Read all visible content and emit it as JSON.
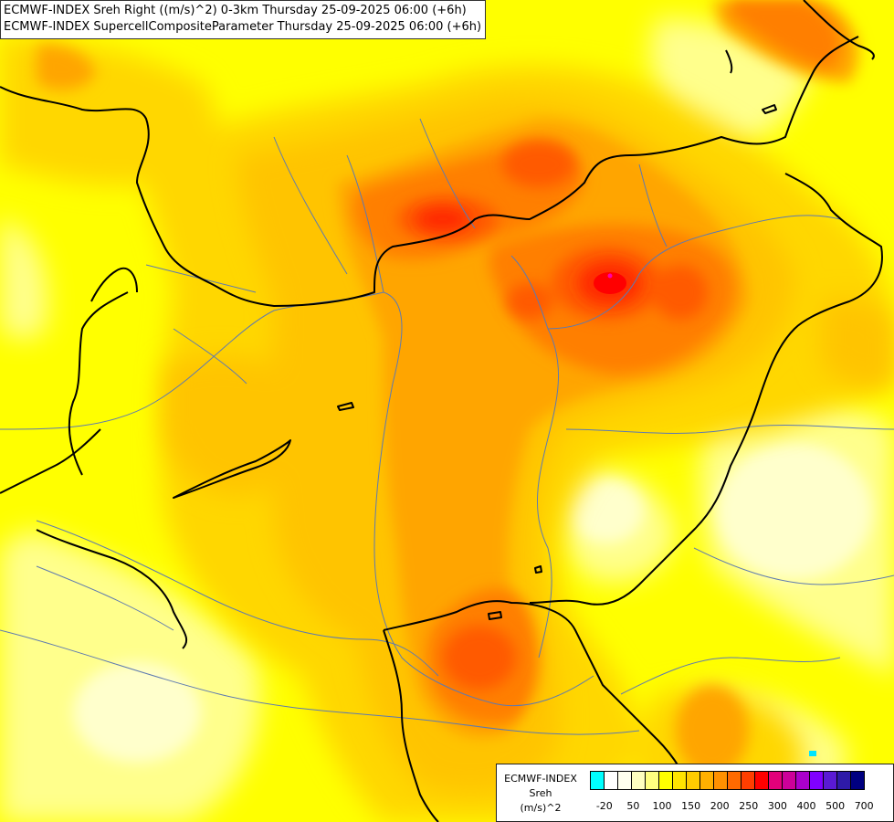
{
  "titles": {
    "line1": "ECMWF-INDEX Sreh Right ((m/s)^2) 0-3km Thursday 25-09-2025 06:00 (+6h)",
    "line2": "ECMWF-INDEX SupercellCompositeParameter Thursday 25-09-2025 06:00 (+6h)"
  },
  "legend": {
    "source": "ECMWF-INDEX",
    "parameter": "Sreh",
    "unit": "(m/s)^2",
    "colors": [
      "#00ffff",
      "#ffffff",
      "#ffffee",
      "#ffffc0",
      "#ffff80",
      "#ffff00",
      "#ffe400",
      "#ffcc00",
      "#ffb000",
      "#ff9000",
      "#ff6a00",
      "#ff3e00",
      "#ff0000",
      "#e2007a",
      "#cc0099",
      "#aa00cc",
      "#8000ff",
      "#5a1ad4",
      "#2e1aa8",
      "#000080"
    ],
    "tick_labels": [
      "-20",
      "50",
      "100",
      "150",
      "200",
      "250",
      "300",
      "400",
      "500",
      "700"
    ]
  },
  "map": {
    "field_colors": {
      "base": "#ffff00",
      "light": "#ffff8c",
      "pale": "#ffffcc",
      "gold": "#ffd700",
      "orange_light": "#ffc400",
      "orange": "#ffa500",
      "orange_dark": "#ff7f00",
      "red_orange": "#ff5a00",
      "red": "#ff2a00",
      "deep_red": "#ff0000",
      "magenta": "#ff00aa"
    },
    "border_color": "#000000",
    "river_color": "#5e7ab0",
    "spot_color": "#00e5ff"
  }
}
